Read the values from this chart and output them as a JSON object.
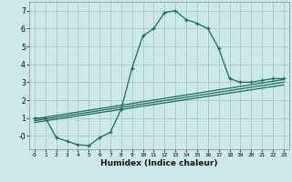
{
  "xlabel": "Humidex (Indice chaleur)",
  "background_color": "#cce8e8",
  "grid_color": "#aacccc",
  "line_color": "#1a6b5a",
  "marker_color": "#1a6b5a",
  "xlim": [
    -0.5,
    23.5
  ],
  "ylim": [
    -0.75,
    7.5
  ],
  "xticks": [
    0,
    1,
    2,
    3,
    4,
    5,
    6,
    7,
    8,
    9,
    10,
    11,
    12,
    13,
    14,
    15,
    16,
    17,
    18,
    19,
    20,
    21,
    22,
    23
  ],
  "yticks": [
    0,
    1,
    2,
    3,
    4,
    5,
    6,
    7
  ],
  "ytick_labels": [
    "-0",
    "1",
    "2",
    "3",
    "4",
    "5",
    "6",
    "7"
  ],
  "main_line_x": [
    0,
    1,
    2,
    3,
    4,
    5,
    6,
    7,
    8,
    9,
    10,
    11,
    12,
    13,
    14,
    15,
    16,
    17,
    18,
    19,
    20,
    21,
    22,
    23
  ],
  "main_line_y": [
    1.0,
    1.0,
    -0.1,
    -0.3,
    -0.5,
    -0.55,
    -0.1,
    0.2,
    1.5,
    3.8,
    5.6,
    6.0,
    6.9,
    7.0,
    6.5,
    6.3,
    6.0,
    4.9,
    3.2,
    3.0,
    3.0,
    3.1,
    3.2,
    3.2
  ],
  "regression_lines": [
    {
      "x": [
        0,
        23
      ],
      "y": [
        0.75,
        2.85
      ]
    },
    {
      "x": [
        0,
        23
      ],
      "y": [
        0.85,
        3.0
      ]
    },
    {
      "x": [
        0,
        23
      ],
      "y": [
        0.95,
        3.15
      ]
    }
  ]
}
